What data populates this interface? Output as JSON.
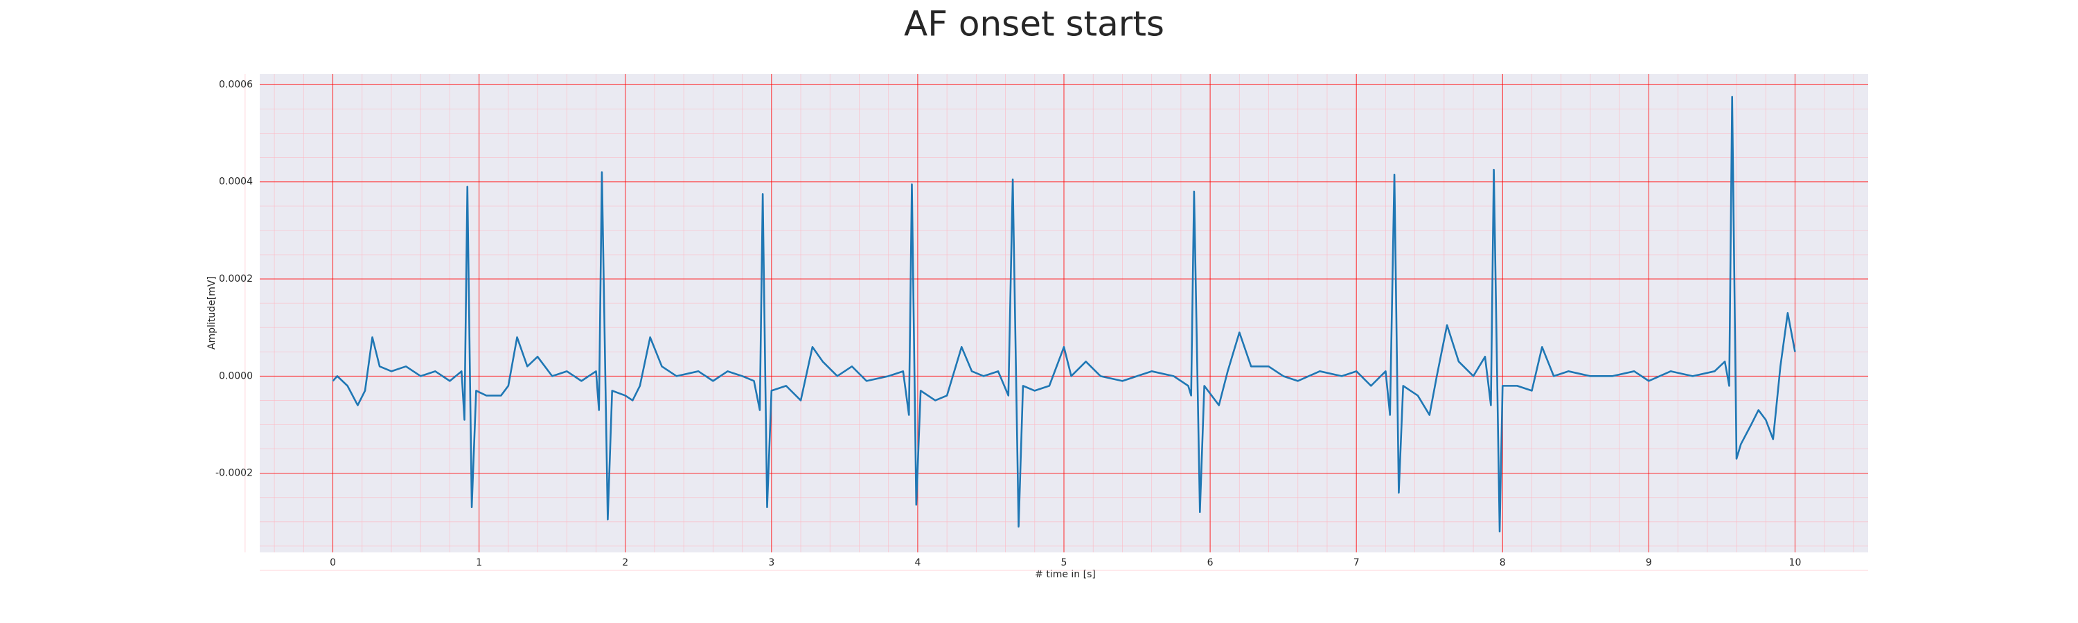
{
  "chart_data": {
    "type": "line",
    "title": "AF onset starts",
    "xlabel": "# time in [s]",
    "ylabel": "Amplitude[mV]",
    "color": "#1f77b4",
    "grid": true,
    "grid_color": "#ff0000",
    "minor_grid": true,
    "minor_grid_color": "#ffb6c1",
    "xlim": [
      -0.5,
      10.5
    ],
    "ylim": [
      -0.000363,
      0.000622
    ],
    "xticks": [
      0,
      1,
      2,
      3,
      4,
      5,
      6,
      7,
      8,
      9,
      10
    ],
    "yticks": [
      -0.0002,
      {
        "value": 0,
        "label": "0.0000"
      },
      0.0002,
      0.0004,
      0.0006
    ],
    "x": [
      0,
      0.03,
      0.1,
      0.17,
      0.22,
      0.27,
      0.32,
      0.4,
      0.5,
      0.6,
      0.7,
      0.8,
      0.88,
      0.9,
      0.92,
      0.95,
      0.98,
      1.05,
      1.15,
      1.2,
      1.26,
      1.33,
      1.4,
      1.5,
      1.6,
      1.7,
      1.8,
      1.82,
      1.84,
      1.88,
      1.91,
      2.0,
      2.05,
      2.1,
      2.17,
      2.25,
      2.35,
      2.5,
      2.6,
      2.7,
      2.8,
      2.88,
      2.92,
      2.94,
      2.97,
      3.0,
      3.1,
      3.2,
      3.28,
      3.35,
      3.45,
      3.55,
      3.65,
      3.8,
      3.9,
      3.94,
      3.96,
      3.99,
      4.02,
      4.12,
      4.2,
      4.3,
      4.37,
      4.45,
      4.55,
      4.62,
      4.65,
      4.69,
      4.72,
      4.8,
      4.9,
      5.0,
      5.05,
      5.15,
      5.25,
      5.4,
      5.5,
      5.6,
      5.75,
      5.85,
      5.87,
      5.89,
      5.93,
      5.96,
      6.06,
      6.12,
      6.2,
      6.28,
      6.4,
      6.5,
      6.6,
      6.75,
      6.9,
      7.0,
      7.1,
      7.2,
      7.23,
      7.26,
      7.29,
      7.32,
      7.42,
      7.5,
      7.55,
      7.62,
      7.7,
      7.8,
      7.88,
      7.92,
      7.94,
      7.98,
      8.0,
      8.1,
      8.2,
      8.27,
      8.35,
      8.45,
      8.6,
      8.75,
      8.9,
      9.0,
      9.15,
      9.3,
      9.45,
      9.52,
      9.55,
      9.57,
      9.6,
      9.63,
      9.7,
      9.75,
      9.8,
      9.85,
      9.9,
      9.95,
      10.0
    ],
    "values": [
      -1e-05,
      0.0,
      -2e-05,
      -6e-05,
      -3e-05,
      8e-05,
      2e-05,
      1e-05,
      2e-05,
      0.0,
      1e-05,
      -1e-05,
      1e-05,
      -9e-05,
      0.00039,
      -0.00027,
      -3e-05,
      -4e-05,
      -4e-05,
      -2e-05,
      8e-05,
      2e-05,
      4e-05,
      0.0,
      1e-05,
      -1e-05,
      1e-05,
      -7e-05,
      0.00042,
      -0.000295,
      -3e-05,
      -4e-05,
      -5e-05,
      -2e-05,
      8e-05,
      2e-05,
      0.0,
      1e-05,
      -1e-05,
      1e-05,
      0.0,
      -1e-05,
      -7e-05,
      0.000375,
      -0.00027,
      -3e-05,
      -2e-05,
      -5e-05,
      6e-05,
      3e-05,
      0.0,
      2e-05,
      -1e-05,
      0.0,
      1e-05,
      -8e-05,
      0.000395,
      -0.000265,
      -3e-05,
      -5e-05,
      -4e-05,
      6e-05,
      1e-05,
      0.0,
      1e-05,
      -4e-05,
      0.000405,
      -0.00031,
      -2e-05,
      -3e-05,
      -2e-05,
      6e-05,
      0.0,
      3e-05,
      0.0,
      -1e-05,
      0.0,
      1e-05,
      0.0,
      -2e-05,
      -4e-05,
      0.00038,
      -0.00028,
      -2e-05,
      -6e-05,
      1e-05,
      9e-05,
      2e-05,
      2e-05,
      0.0,
      -1e-05,
      1e-05,
      0.0,
      1e-05,
      -2e-05,
      1e-05,
      -8e-05,
      0.000415,
      -0.00024,
      -2e-05,
      -4e-05,
      -8e-05,
      0.0,
      0.000105,
      3e-05,
      0.0,
      4e-05,
      -6e-05,
      0.000425,
      -0.00032,
      -2e-05,
      -2e-05,
      -3e-05,
      6e-05,
      0.0,
      1e-05,
      0.0,
      0.0,
      1e-05,
      -1e-05,
      1e-05,
      0.0,
      1e-05,
      3e-05,
      -2e-05,
      0.000575,
      -0.00017,
      -0.00014,
      -0.0001,
      -7e-05,
      -9e-05,
      -0.00013,
      2e-05,
      0.00013,
      5e-05
    ]
  }
}
